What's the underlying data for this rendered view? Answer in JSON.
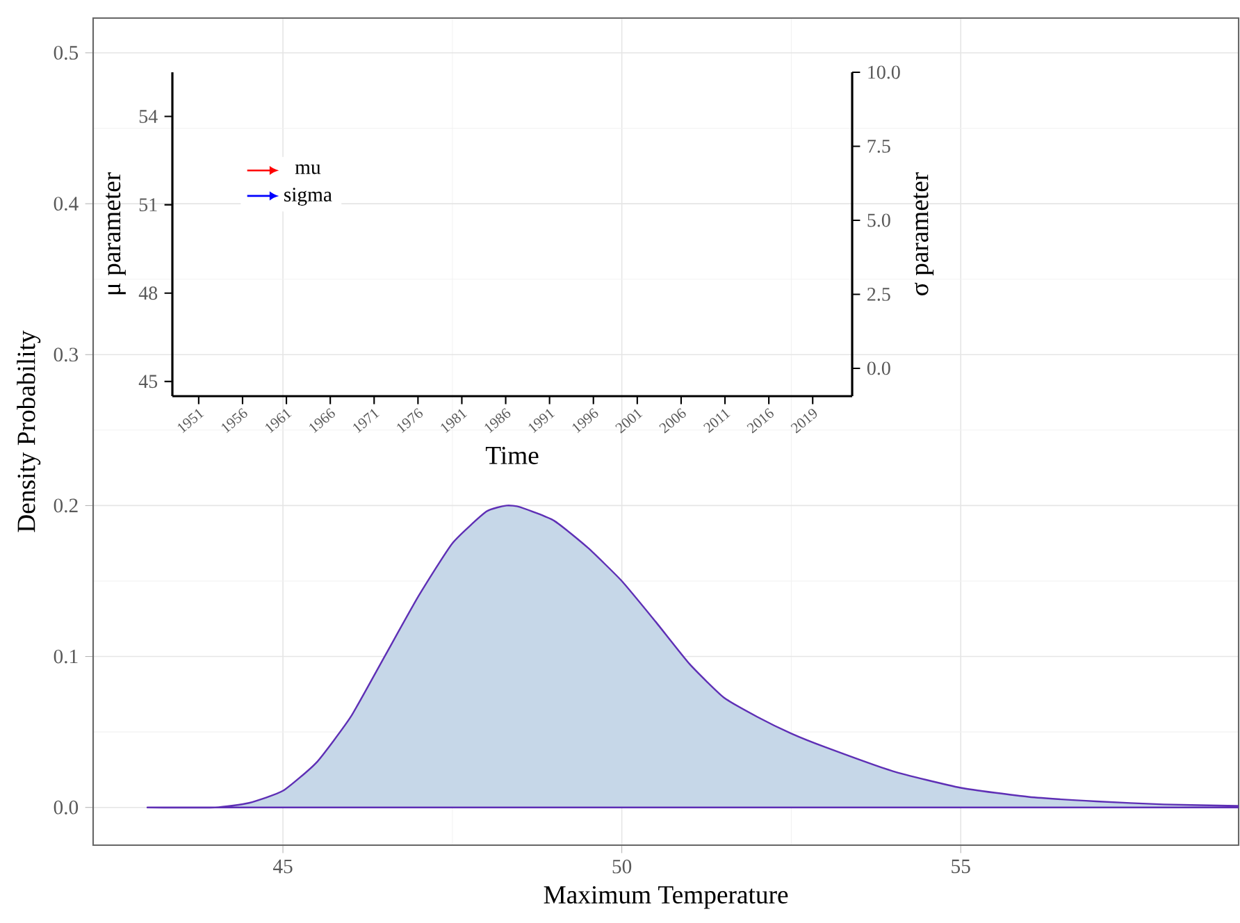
{
  "chart_data": [
    {
      "type": "area",
      "xlabel": "Maximum Temperature",
      "ylabel": "Density Probability",
      "xlim": [
        42.2,
        59.1
      ],
      "ylim": [
        -0.025,
        0.523
      ],
      "xticks": [
        45,
        50,
        55
      ],
      "yticks": [
        {
          "value": 0,
          "label": "0.0"
        },
        0.1,
        0.2,
        0.3,
        0.4,
        0.5
      ],
      "grid": true,
      "legend": false,
      "series": [
        {
          "color": "#c6d7e8",
          "x": [
            43,
            44,
            44.5,
            45,
            45.5,
            46,
            46.5,
            47,
            47.5,
            48,
            48.3,
            48.5,
            49,
            49.5,
            50,
            50.5,
            51,
            51.5,
            52,
            52.5,
            53,
            54,
            55,
            56,
            57,
            58,
            59.1
          ],
          "values": [
            0,
            0,
            0.003,
            0.011,
            0.03,
            0.06,
            0.1,
            0.14,
            0.175,
            0.196,
            0.2,
            0.199,
            0.19,
            0.172,
            0.15,
            0.123,
            0.095,
            0.073,
            0.06,
            0.049,
            0.04,
            0.024,
            0.013,
            0.007,
            0.004,
            0.002,
            0.001
          ]
        }
      ]
    },
    {
      "type": "line",
      "xlabel": "Time",
      "ylabel": "μ  parameter",
      "y2label": "σ  parameter",
      "categories": [
        "1951",
        "1956",
        "1961",
        "1966",
        "1971",
        "1976",
        "1981",
        "1986",
        "1991",
        "1996",
        "2001",
        "2006",
        "2011",
        "2016",
        "2019"
      ],
      "ylim": [
        44.5,
        55.5
      ],
      "yticks": [
        45,
        48,
        51,
        54
      ],
      "y2lim": [
        -0.94,
        10
      ],
      "y2ticks": [
        {
          "value": 0,
          "label": "0.0"
        },
        2.5,
        {
          "value": 5,
          "label": "5.0"
        },
        7.5,
        {
          "value": 10,
          "label": "10.0"
        }
      ],
      "grid": false,
      "legend": "top left",
      "series": [
        {
          "name": "mu",
          "color": "#ff0000",
          "values": [
            null,
            null,
            null,
            null,
            null,
            null,
            null,
            null,
            null,
            null,
            null,
            null,
            null,
            null,
            null
          ]
        },
        {
          "name": "sigma",
          "color": "#0000ff",
          "values": [
            null,
            null,
            null,
            null,
            null,
            null,
            null,
            null,
            null,
            null,
            null,
            null,
            null,
            null,
            null
          ]
        }
      ]
    }
  ]
}
